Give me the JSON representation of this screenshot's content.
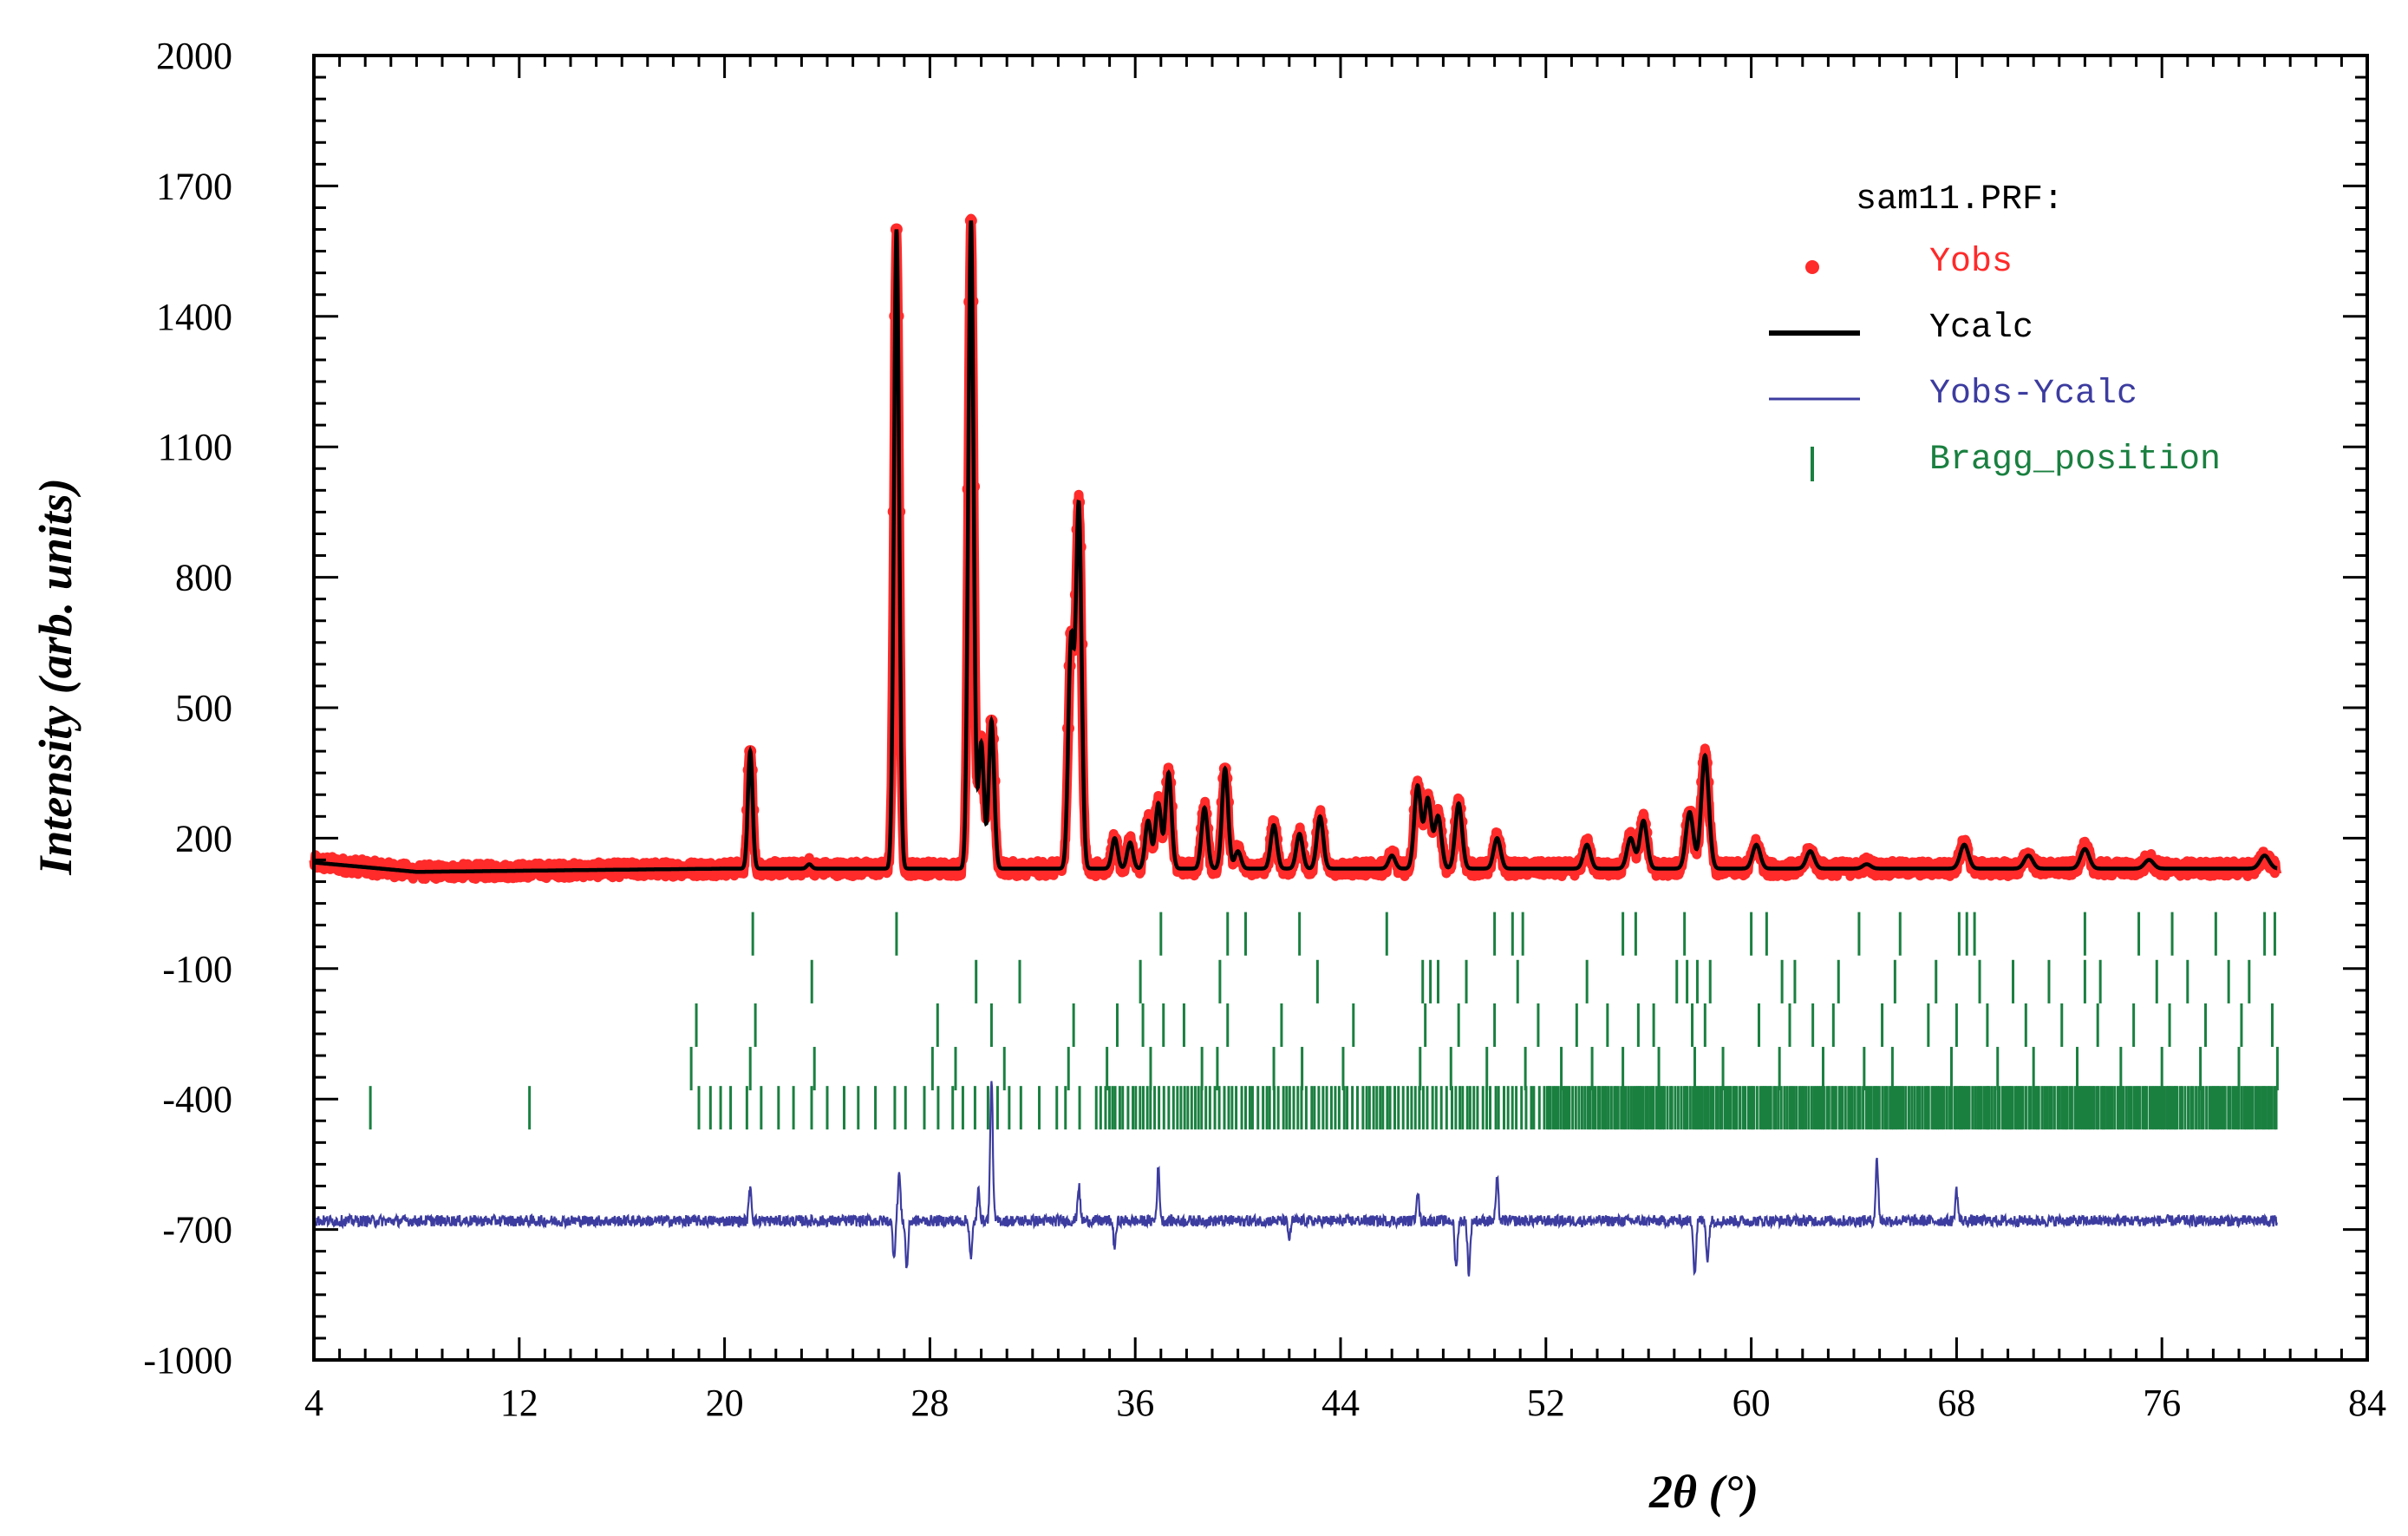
{
  "chart_data": {
    "type": "line",
    "title": "",
    "xlabel": "2θ (°)",
    "ylabel": "Intensity (arb. units)",
    "xlim": [
      4,
      84
    ],
    "ylim": [
      -1000,
      2000
    ],
    "x_ticks": [
      "4",
      "12",
      "20",
      "28",
      "36",
      "44",
      "52",
      "60",
      "68",
      "76",
      "84"
    ],
    "y_ticks": [
      "-1000",
      "-700",
      "-400",
      "-100",
      "200",
      "500",
      "800",
      "1100",
      "1400",
      "1700",
      "2000"
    ],
    "legend": {
      "title": "sam11.PRF:",
      "position": "top-right",
      "entries": [
        {
          "label": "Yobs",
          "color": "#ff2a2a",
          "style": "dot"
        },
        {
          "label": "Ycalc",
          "color": "#000000",
          "style": "line"
        },
        {
          "label": "Yobs-Ycalc",
          "color": "#3c3ca0",
          "style": "thin-line"
        },
        {
          "label": "Bragg_position",
          "color": "#1a8040",
          "style": "tick"
        }
      ]
    },
    "baseline": 130,
    "difference_offset": -680,
    "x_range_data": [
      4,
      80.5
    ],
    "peaks": [
      {
        "x": 21.0,
        "y": 400
      },
      {
        "x": 23.3,
        "y": 140
      },
      {
        "x": 26.7,
        "y": 1600
      },
      {
        "x": 29.6,
        "y": 1620
      },
      {
        "x": 30.0,
        "y": 420
      },
      {
        "x": 30.4,
        "y": 470
      },
      {
        "x": 31.5,
        "y": 130
      },
      {
        "x": 33.5,
        "y": 650
      },
      {
        "x": 33.8,
        "y": 960
      },
      {
        "x": 35.2,
        "y": 200
      },
      {
        "x": 35.8,
        "y": 190
      },
      {
        "x": 36.5,
        "y": 240
      },
      {
        "x": 36.9,
        "y": 280
      },
      {
        "x": 37.3,
        "y": 350
      },
      {
        "x": 38.7,
        "y": 270
      },
      {
        "x": 39.5,
        "y": 360
      },
      {
        "x": 40.0,
        "y": 170
      },
      {
        "x": 41.4,
        "y": 230
      },
      {
        "x": 42.4,
        "y": 210
      },
      {
        "x": 43.2,
        "y": 250
      },
      {
        "x": 46.0,
        "y": 160
      },
      {
        "x": 47.0,
        "y": 320
      },
      {
        "x": 47.4,
        "y": 290
      },
      {
        "x": 47.8,
        "y": 250
      },
      {
        "x": 48.6,
        "y": 280
      },
      {
        "x": 50.1,
        "y": 200
      },
      {
        "x": 53.6,
        "y": 185
      },
      {
        "x": 55.3,
        "y": 200
      },
      {
        "x": 55.8,
        "y": 240
      },
      {
        "x": 57.6,
        "y": 260
      },
      {
        "x": 58.2,
        "y": 390
      },
      {
        "x": 60.2,
        "y": 185
      },
      {
        "x": 62.3,
        "y": 170
      },
      {
        "x": 64.5,
        "y": 140
      },
      {
        "x": 68.3,
        "y": 185
      },
      {
        "x": 70.8,
        "y": 160
      },
      {
        "x": 73.0,
        "y": 175
      },
      {
        "x": 75.5,
        "y": 150
      },
      {
        "x": 80.0,
        "y": 160
      }
    ],
    "bragg_rows": [
      {
        "y_center": -20,
        "positions": [
          21.1,
          26.7,
          37.0,
          39.6,
          40.3,
          42.4,
          45.8,
          50.0,
          50.7,
          51.1,
          55.0,
          55.5,
          57.4,
          60.0,
          60.6,
          64.2,
          65.8,
          68.1,
          68.4,
          68.7,
          73.0,
          75.1,
          76.4,
          78.1,
          80.0,
          80.4
        ]
      },
      {
        "y_center": -130,
        "positions": [
          23.4,
          29.8,
          31.5,
          36.2,
          39.3,
          43.1,
          47.2,
          47.5,
          47.8,
          48.9,
          50.9,
          53.6,
          57.1,
          57.5,
          57.9,
          58.4,
          61.2,
          61.7,
          63.4,
          65.6,
          67.2,
          68.9,
          70.2,
          71.6,
          73.0,
          73.6,
          75.8,
          77.0,
          78.6,
          79.4
        ]
      },
      {
        "y_center": -230,
        "positions": [
          18.9,
          21.2,
          28.3,
          30.4,
          33.6,
          35.3,
          36.3,
          37.1,
          37.9,
          39.6,
          41.7,
          44.5,
          47.3,
          48.6,
          50.0,
          51.7,
          53.2,
          54.4,
          55.6,
          56.2,
          57.7,
          58.2,
          60.3,
          61.5,
          62.4,
          63.2,
          65.1,
          66.9,
          68.0,
          69.2,
          70.7,
          72.1,
          73.5,
          74.9,
          76.3,
          77.7,
          79.1,
          80.3
        ]
      },
      {
        "y_center": -330,
        "positions": [
          18.7,
          21.0,
          23.5,
          28.1,
          29.0,
          30.9,
          33.4,
          34.9,
          36.6,
          38.6,
          39.2,
          41.4,
          42.5,
          44.1,
          47.1,
          48.3,
          49.7,
          51.2,
          52.6,
          53.8,
          55.0,
          56.4,
          57.8,
          58.9,
          61.1,
          62.8,
          64.4,
          65.5,
          67.8,
          69.6,
          71.0,
          72.7,
          74.4,
          76.0,
          77.5,
          79.0,
          80.5
        ]
      }
    ],
    "bragg_dense_row": {
      "y_center": -420,
      "from": 19.0,
      "to": 80.5,
      "isolated": [
        6.2,
        12.4
      ]
    },
    "difference_spikes": [
      {
        "x": 21.0,
        "y": 80
      },
      {
        "x": 26.6,
        "y": -80
      },
      {
        "x": 26.8,
        "y": 110
      },
      {
        "x": 27.1,
        "y": -110
      },
      {
        "x": 29.6,
        "y": -90
      },
      {
        "x": 29.9,
        "y": 70
      },
      {
        "x": 30.4,
        "y": 330
      },
      {
        "x": 33.8,
        "y": 80
      },
      {
        "x": 35.2,
        "y": -60
      },
      {
        "x": 36.9,
        "y": 120
      },
      {
        "x": 42.0,
        "y": -40
      },
      {
        "x": 47.0,
        "y": 70
      },
      {
        "x": 48.5,
        "y": -110
      },
      {
        "x": 49.0,
        "y": -120
      },
      {
        "x": 50.1,
        "y": 95
      },
      {
        "x": 57.8,
        "y": -120
      },
      {
        "x": 58.3,
        "y": -90
      },
      {
        "x": 64.9,
        "y": 140
      },
      {
        "x": 68.0,
        "y": 70
      }
    ]
  }
}
